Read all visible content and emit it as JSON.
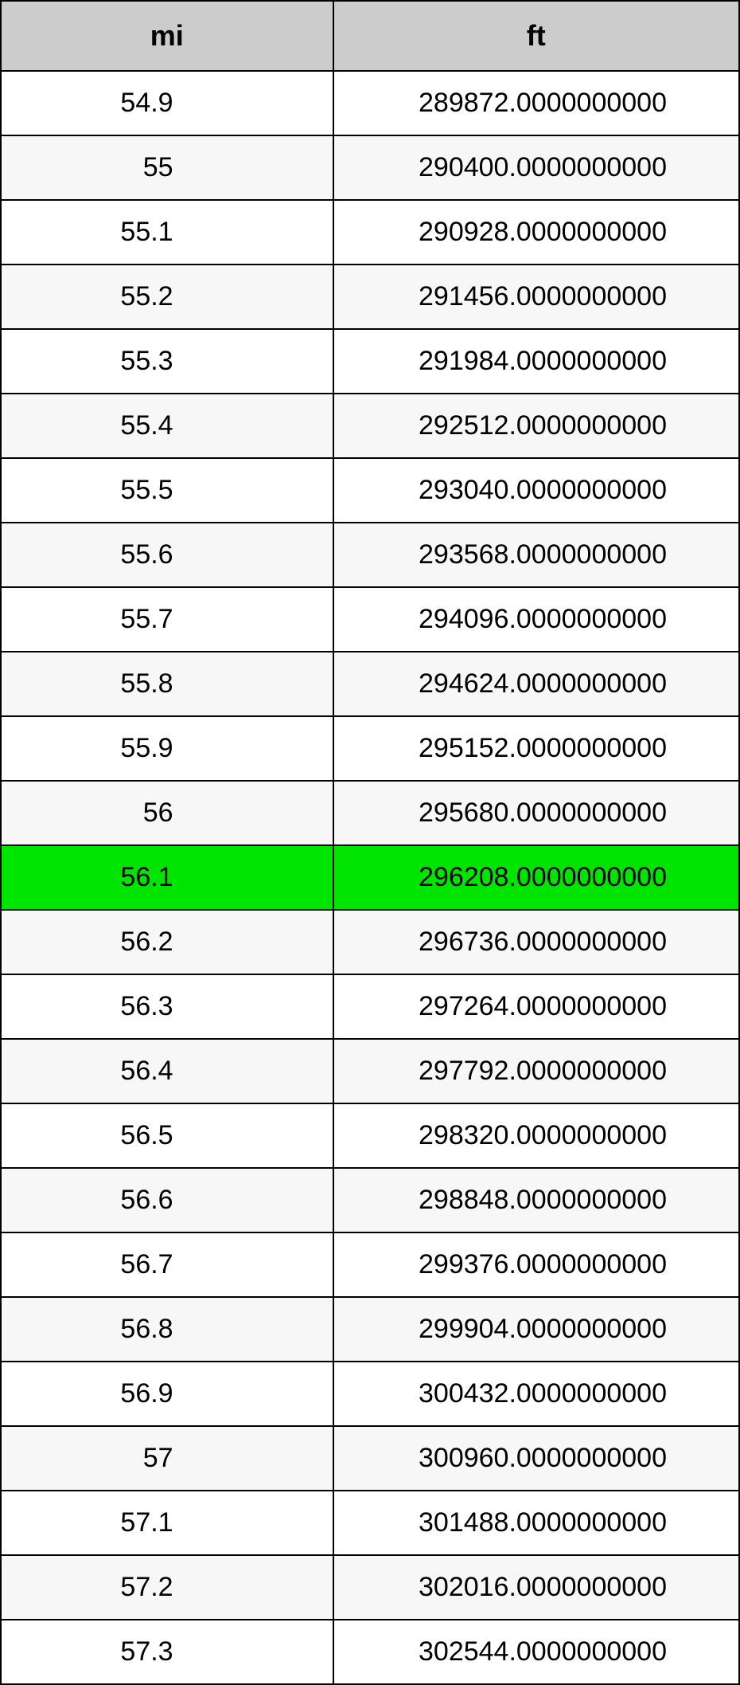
{
  "table": {
    "type": "table",
    "columns": [
      "mi",
      "ft"
    ],
    "highlight_index": 12,
    "colors": {
      "header_bg": "#cccccc",
      "border": "#000000",
      "row_odd_bg": "#ffffff",
      "row_even_bg": "#f7f7f7",
      "highlight_bg": "#00e500",
      "text": "#000000"
    },
    "fontsize_header": 36,
    "fontsize_cell": 34,
    "rows": [
      [
        "54.9",
        "289872.0000000000"
      ],
      [
        "55",
        "290400.0000000000"
      ],
      [
        "55.1",
        "290928.0000000000"
      ],
      [
        "55.2",
        "291456.0000000000"
      ],
      [
        "55.3",
        "291984.0000000000"
      ],
      [
        "55.4",
        "292512.0000000000"
      ],
      [
        "55.5",
        "293040.0000000000"
      ],
      [
        "55.6",
        "293568.0000000000"
      ],
      [
        "55.7",
        "294096.0000000000"
      ],
      [
        "55.8",
        "294624.0000000000"
      ],
      [
        "55.9",
        "295152.0000000000"
      ],
      [
        "56",
        "295680.0000000000"
      ],
      [
        "56.1",
        "296208.0000000000"
      ],
      [
        "56.2",
        "296736.0000000000"
      ],
      [
        "56.3",
        "297264.0000000000"
      ],
      [
        "56.4",
        "297792.0000000000"
      ],
      [
        "56.5",
        "298320.0000000000"
      ],
      [
        "56.6",
        "298848.0000000000"
      ],
      [
        "56.7",
        "299376.0000000000"
      ],
      [
        "56.8",
        "299904.0000000000"
      ],
      [
        "56.9",
        "300432.0000000000"
      ],
      [
        "57",
        "300960.0000000000"
      ],
      [
        "57.1",
        "301488.0000000000"
      ],
      [
        "57.2",
        "302016.0000000000"
      ],
      [
        "57.3",
        "302544.0000000000"
      ]
    ]
  }
}
